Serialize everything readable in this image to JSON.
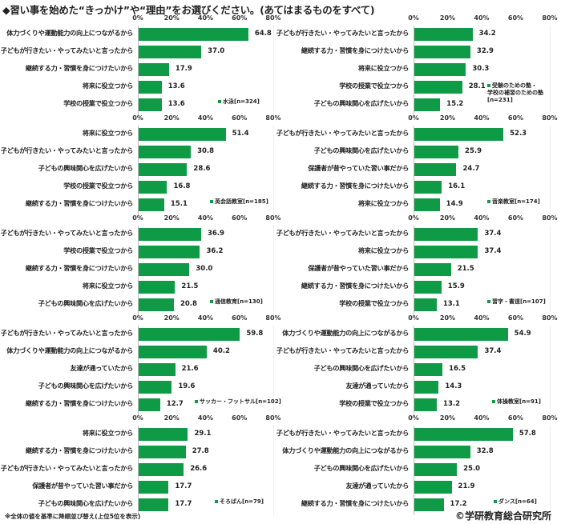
{
  "title": "◆習い事を始めた“きっかけ”や“理由”をお選びください。(あてはまるものをすべて)",
  "footnote": "※全体の値を基準に降順並び替え(上位5位を表示)",
  "copyright": "©学研教育総合研究所",
  "axis_ticks": [
    "0%",
    "20%",
    "40%",
    "60%",
    "80%"
  ],
  "colors": {
    "bar": "#0f9a46",
    "axis": "#bdbdbd"
  },
  "chart_data": [
    {
      "type": "bar",
      "orientation": "horizontal",
      "title": "水泳",
      "legend": "水泳[n=324]",
      "n": 324,
      "xlim": [
        0,
        80
      ],
      "unit": "%",
      "categories": [
        "体力づくりや運動能力の向上につながるから",
        "子どもが行きたい・やってみたいと言ったから",
        "継続する力・習慣を身につけたいから",
        "将来に役立つから",
        "学校の授業で役立つから"
      ],
      "values": [
        64.8,
        37.0,
        17.9,
        13.6,
        13.6
      ],
      "labels": [
        "64.8",
        "37.0",
        "17.9",
        "13.6",
        "13.6"
      ]
    },
    {
      "type": "bar",
      "orientation": "horizontal",
      "title": "受験のための塾・学校の補習のための塾",
      "legend": "受験のための塾・\n学校の補習のための塾\n[n=231]",
      "n": 231,
      "xlim": [
        0,
        80
      ],
      "unit": "%",
      "categories": [
        "子どもが行きたい・やってみたいと言ったから",
        "継続する力・習慣を身につけたいから",
        "将来に役立つから",
        "学校の授業で役立つから",
        "子どもの興味関心を広げたいから"
      ],
      "values": [
        34.2,
        32.9,
        30.3,
        28.1,
        15.2
      ],
      "labels": [
        "34.2",
        "32.9",
        "30.3",
        "28.1",
        "15.2"
      ]
    },
    {
      "type": "bar",
      "orientation": "horizontal",
      "title": "英会話教室",
      "legend": "英会話教室[n=185]",
      "n": 185,
      "xlim": [
        0,
        80
      ],
      "unit": "%",
      "categories": [
        "将来に役立つから",
        "子どもが行きたい・やってみたいと言ったから",
        "子どもの興味関心を広げたいから",
        "学校の授業で役立つから",
        "継続する力・習慣を身につけたいから"
      ],
      "values": [
        51.4,
        30.8,
        28.6,
        16.8,
        15.1
      ],
      "labels": [
        "51.4",
        "30.8",
        "28.6",
        "16.8",
        "15.1"
      ]
    },
    {
      "type": "bar",
      "orientation": "horizontal",
      "title": "音楽教室",
      "legend": "音楽教室[n=174]",
      "n": 174,
      "xlim": [
        0,
        80
      ],
      "unit": "%",
      "categories": [
        "子どもが行きたい・やってみたいと言ったから",
        "子どもの興味関心を広げたいから",
        "保護者が昔やっていた習い事だから",
        "継続する力・習慣を身につけたいから",
        "将来に役立つから"
      ],
      "values": [
        52.3,
        25.9,
        24.7,
        16.1,
        14.9
      ],
      "labels": [
        "52.3",
        "25.9",
        "24.7",
        "16.1",
        "14.9"
      ]
    },
    {
      "type": "bar",
      "orientation": "horizontal",
      "title": "通信教育",
      "legend": "通信教育[n=130]",
      "n": 130,
      "xlim": [
        0,
        80
      ],
      "unit": "%",
      "categories": [
        "子どもが行きたい・やってみたいと言ったから",
        "学校の授業で役立つから",
        "継続する力・習慣を身につけたいから",
        "将来に役立つから",
        "子どもの興味関心を広げたいから"
      ],
      "values": [
        36.9,
        36.2,
        30.0,
        21.5,
        20.8
      ],
      "labels": [
        "36.9",
        "36.2",
        "30.0",
        "21.5",
        "20.8"
      ]
    },
    {
      "type": "bar",
      "orientation": "horizontal",
      "title": "習字・書道",
      "legend": "習字・書道[n=107]",
      "n": 107,
      "xlim": [
        0,
        80
      ],
      "unit": "%",
      "categories": [
        "子どもが行きたい・やってみたいと言ったから",
        "将来に役立つから",
        "保護者が昔やっていた習い事だから",
        "継続する力・習慣を身につけたいから",
        "学校の授業で役立つから"
      ],
      "values": [
        37.4,
        37.4,
        21.5,
        15.9,
        13.1
      ],
      "labels": [
        "37.4",
        "37.4",
        "21.5",
        "15.9",
        "13.1"
      ]
    },
    {
      "type": "bar",
      "orientation": "horizontal",
      "title": "サッカー・フットサル",
      "legend": "サッカー・フットサル[n=102]",
      "n": 102,
      "xlim": [
        0,
        80
      ],
      "unit": "%",
      "categories": [
        "子どもが行きたい・やってみたいと言ったから",
        "体力づくりや運動能力の向上につながるから",
        "友達が通っていたから",
        "子どもの興味関心を広げたいから",
        "継続する力・習慣を身につけたいから"
      ],
      "values": [
        59.8,
        40.2,
        21.6,
        19.6,
        12.7
      ],
      "labels": [
        "59.8",
        "40.2",
        "21.6",
        "19.6",
        "12.7"
      ]
    },
    {
      "type": "bar",
      "orientation": "horizontal",
      "title": "体操教室",
      "legend": "体操教室[n=91]",
      "n": 91,
      "xlim": [
        0,
        80
      ],
      "unit": "%",
      "categories": [
        "体力づくりや運動能力の向上につながるから",
        "子どもが行きたい・やってみたいと言ったから",
        "子どもの興味関心を広げたいから",
        "友達が通っていたから",
        "学校の授業で役立つから"
      ],
      "values": [
        54.9,
        37.4,
        16.5,
        14.3,
        13.2
      ],
      "labels": [
        "54.9",
        "37.4",
        "16.5",
        "14.3",
        "13.2"
      ]
    },
    {
      "type": "bar",
      "orientation": "horizontal",
      "title": "そろばん",
      "legend": "そろばん[n=79]",
      "n": 79,
      "xlim": [
        0,
        80
      ],
      "unit": "%",
      "categories": [
        "将来に役立つから",
        "継続する力・習慣を身につけたいから",
        "子どもが行きたい・やってみたいと言ったから",
        "保護者が昔やっていた習い事だから",
        "子どもの興味関心を広げたいから"
      ],
      "values": [
        29.1,
        27.8,
        26.6,
        17.7,
        17.7
      ],
      "labels": [
        "29.1",
        "27.8",
        "26.6",
        "17.7",
        "17.7"
      ]
    },
    {
      "type": "bar",
      "orientation": "horizontal",
      "title": "ダンス",
      "legend": "ダンス[n=64]",
      "n": 64,
      "xlim": [
        0,
        80
      ],
      "unit": "%",
      "categories": [
        "子どもが行きたい・やってみたいと言ったから",
        "体力づくりや運動能力の向上につながるから",
        "子どもの興味関心を広げたいから",
        "友達が通っていたから",
        "継続する力・習慣を身につけたいから"
      ],
      "values": [
        57.8,
        32.8,
        25.0,
        21.9,
        17.2
      ],
      "labels": [
        "57.8",
        "32.8",
        "25.0",
        "21.9",
        "17.2"
      ]
    }
  ]
}
